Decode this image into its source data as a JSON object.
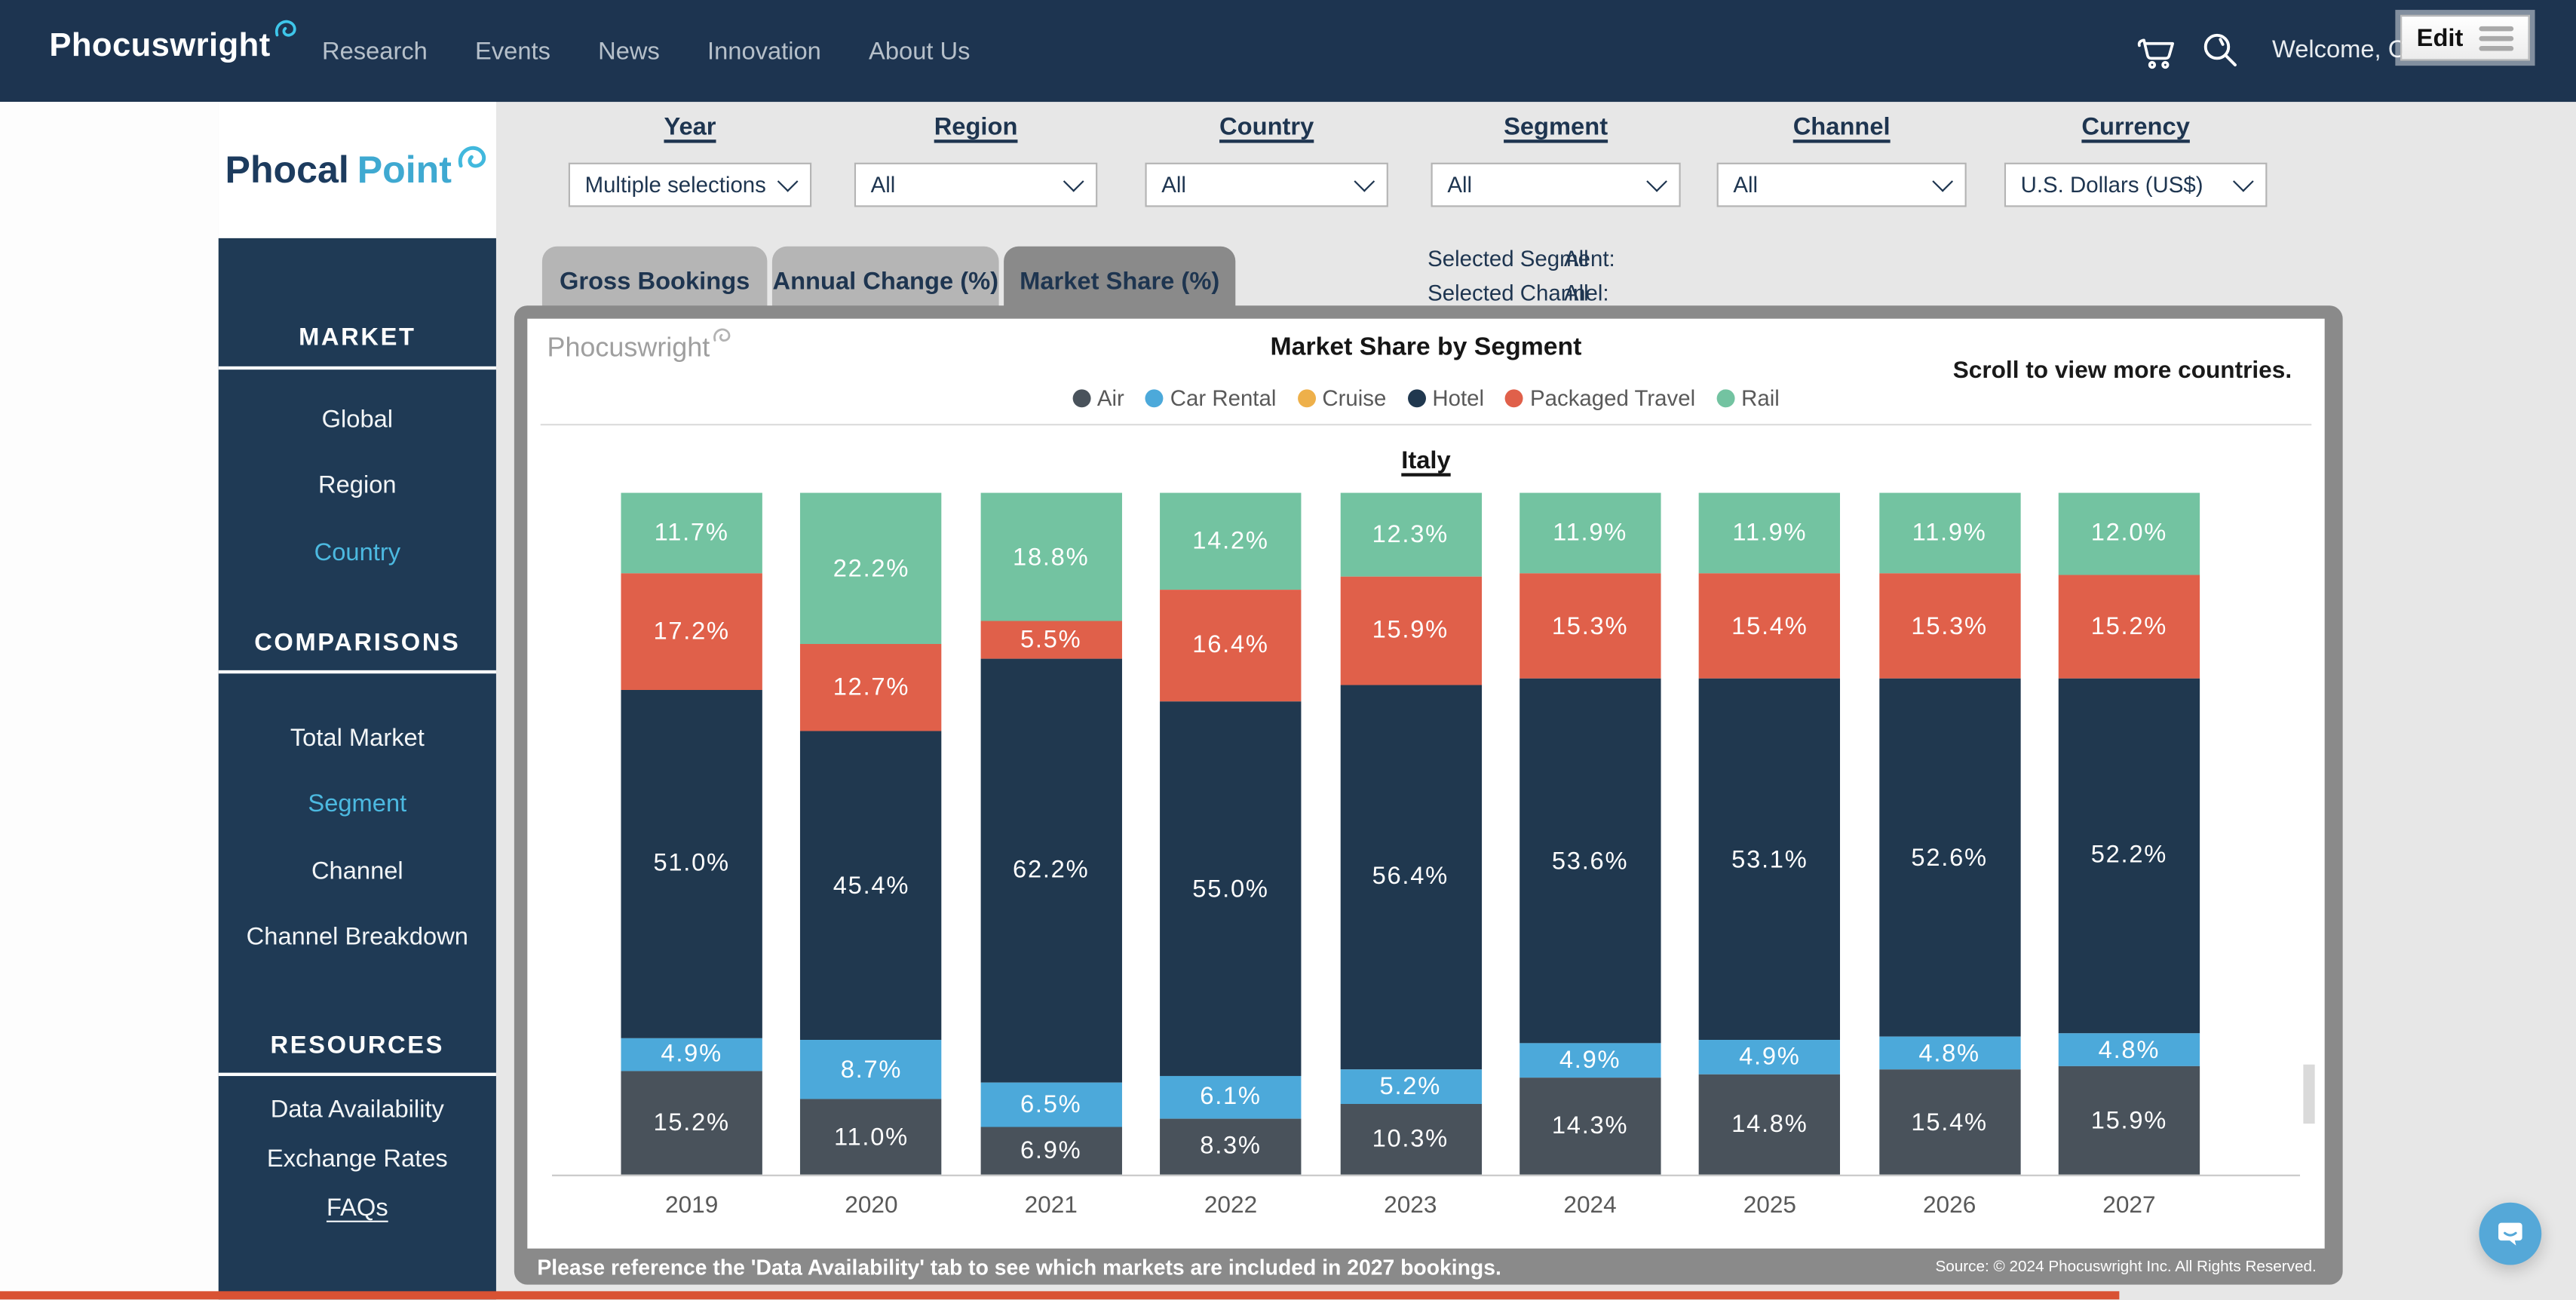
{
  "navbar": {
    "brand": "Phocuswright",
    "links": [
      "Research",
      "Events",
      "News",
      "Innovation",
      "About Us"
    ],
    "icons": [
      "cart-icon",
      "search-icon"
    ],
    "welcome_text": "Welcome, C",
    "edit_button": "Edit"
  },
  "sidebar": {
    "logo": {
      "part1": "Phocal",
      "part2": "Point",
      "icon": "swirl-icon"
    },
    "sections": [
      {
        "title": "MARKET",
        "items": [
          {
            "label": "Global",
            "active": false
          },
          {
            "label": "Region",
            "active": false
          },
          {
            "label": "Country",
            "active": true
          }
        ]
      },
      {
        "title": "COMPARISONS",
        "items": [
          {
            "label": "Total Market",
            "active": false
          },
          {
            "label": "Segment",
            "active": true
          },
          {
            "label": "Channel",
            "active": false
          },
          {
            "label": "Channel Breakdown",
            "active": false
          }
        ]
      },
      {
        "title": "RESOURCES",
        "items": [
          {
            "label": "Data Availability",
            "active": false
          },
          {
            "label": "Exchange Rates",
            "active": false
          },
          {
            "label": "FAQs",
            "active": false,
            "underline": true
          }
        ]
      }
    ]
  },
  "filters": [
    {
      "label": "Year",
      "value": "Multiple selections"
    },
    {
      "label": "Region",
      "value": "All"
    },
    {
      "label": "Country",
      "value": "All"
    },
    {
      "label": "Segment",
      "value": "All"
    },
    {
      "label": "Channel",
      "value": "All"
    },
    {
      "label": "Currency",
      "value": "U.S. Dollars (US$)"
    }
  ],
  "tabs": [
    {
      "label": "Gross Bookings",
      "active": false
    },
    {
      "label": "Annual Change (%)",
      "active": false
    },
    {
      "label": "Market Share (%)",
      "active": true
    }
  ],
  "selection_info": [
    {
      "label": "Selected Segment:",
      "value": "All"
    },
    {
      "label": "Selected Channel:",
      "value": "All"
    }
  ],
  "chart": {
    "watermark": "Phocuswright",
    "title": "Market Share by Segment",
    "scroll_hint": "Scroll to view more countries.",
    "country": "Italy",
    "footnote": "Please reference the 'Data Availability' tab to see which markets are included in 2027 bookings.",
    "source": "Source: © 2024 Phocuswright Inc. All Rights Reserved."
  },
  "chart_data": {
    "type": "bar",
    "stacked": true,
    "title": "Market Share by Segment",
    "country_label": "Italy",
    "unit": "%",
    "ylim": [
      0,
      100
    ],
    "legend_position": "top",
    "categories": [
      "2019",
      "2020",
      "2021",
      "2022",
      "2023",
      "2024",
      "2025",
      "2026",
      "2027"
    ],
    "legend": [
      {
        "name": "Air",
        "color": "#49525b"
      },
      {
        "name": "Car Rental",
        "color": "#4ca9da"
      },
      {
        "name": "Cruise",
        "color": "#eeb04a"
      },
      {
        "name": "Hotel",
        "color": "#20384f"
      },
      {
        "name": "Packaged Travel",
        "color": "#e0604a"
      },
      {
        "name": "Rail",
        "color": "#73c3a1"
      }
    ],
    "stack_order_bottom_to_top": [
      "Air",
      "Car Rental",
      "Hotel",
      "Packaged Travel",
      "Rail"
    ],
    "series": [
      {
        "name": "Air",
        "color": "#49525b",
        "values": [
          15.2,
          11.0,
          6.9,
          8.3,
          10.3,
          14.3,
          14.8,
          15.4,
          15.9
        ]
      },
      {
        "name": "Car Rental",
        "color": "#4ca9da",
        "values": [
          4.9,
          8.7,
          6.5,
          6.1,
          5.2,
          4.9,
          4.9,
          4.8,
          4.8
        ]
      },
      {
        "name": "Hotel",
        "color": "#20384f",
        "values": [
          51.0,
          45.4,
          62.2,
          55.0,
          56.4,
          53.6,
          53.1,
          52.6,
          52.2
        ]
      },
      {
        "name": "Packaged Travel",
        "color": "#e0604a",
        "values": [
          17.2,
          12.7,
          5.5,
          16.4,
          15.9,
          15.3,
          15.4,
          15.3,
          15.2
        ]
      },
      {
        "name": "Rail",
        "color": "#73c3a1",
        "values": [
          11.7,
          22.2,
          18.8,
          14.2,
          12.3,
          11.9,
          11.9,
          11.9,
          12.0
        ]
      }
    ]
  },
  "colors": {
    "navbar_bg": "#1d3450",
    "sidebar_bg": "#1f3a55",
    "accent_teal": "#41b8dd",
    "sidebar_active_link": "#4cb9e0",
    "content_bg": "#e7e7e7",
    "tab_inactive": "#b5b5b5",
    "frame_gray": "#8a8a8a",
    "bottom_bar_red": "#d95233",
    "chat_button_blue": "#55a8d8"
  }
}
